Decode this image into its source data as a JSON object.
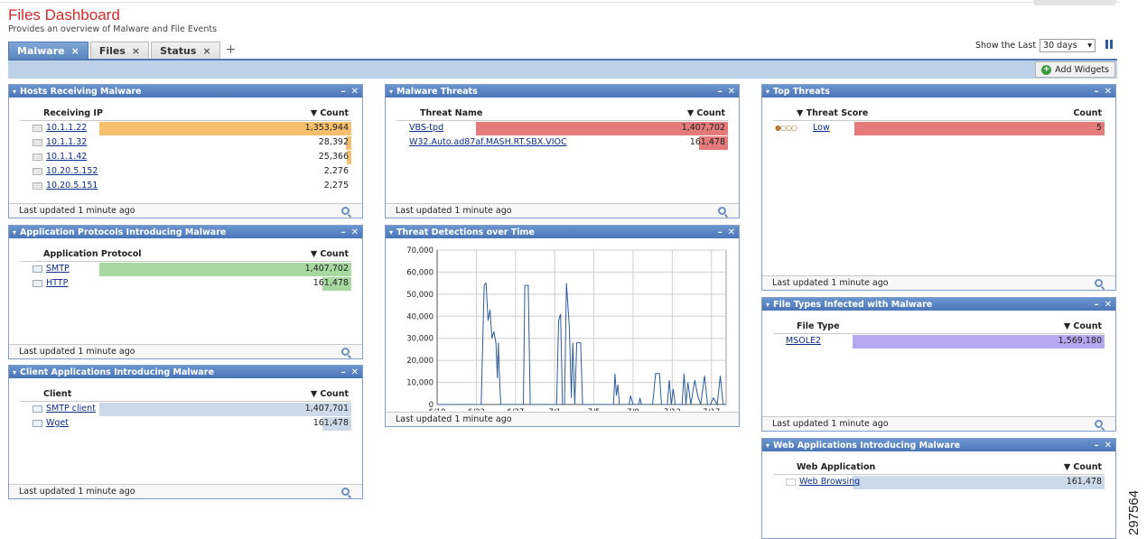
{
  "page": {
    "title": "Files Dashboard",
    "subtitle": "Provides an overview of Malware and File Events",
    "figure_number": "297564"
  },
  "tabs": [
    {
      "label": "Malware",
      "active": true
    },
    {
      "label": "Files",
      "active": false
    },
    {
      "label": "Status",
      "active": false
    }
  ],
  "tab_add": "+",
  "tab_close": "×",
  "controls": {
    "show_last_label": "Show the Last",
    "time_range": "30 days",
    "pause_icon": "pause-icon"
  },
  "toolbar": {
    "add_widgets": "Add Widgets"
  },
  "colors": {
    "orange": "#f5bf6e",
    "red": "#e47a7a",
    "green": "#a6d8a0",
    "blue_gray": "#cbd9e8",
    "purple": "#b6a8f0",
    "header": "#4a76b7",
    "line": "#2e5c9a"
  },
  "widgets": {
    "hosts": {
      "title": "Hosts Receiving Malware",
      "col1": "Receiving IP",
      "col2": "▼ Count",
      "rows": [
        {
          "label": "10.1.1.22",
          "value": "1,353,944",
          "fraction": 1.0
        },
        {
          "label": "10.1.1.32",
          "value": "28,392",
          "fraction": 0.021
        },
        {
          "label": "10.1.1.42",
          "value": "25,366",
          "fraction": 0.019
        },
        {
          "label": "10.20.5.152",
          "value": "2,276",
          "fraction": 0.0
        },
        {
          "label": "10.20.5.151",
          "value": "2,275",
          "fraction": 0.0
        }
      ],
      "footer": "Last updated 1 minute ago"
    },
    "app_protocols": {
      "title": "Application Protocols Introducing Malware",
      "col1": "Application Protocol",
      "col2": "▼ Count",
      "rows": [
        {
          "label": "SMTP",
          "value": "1,407,702",
          "fraction": 1.0
        },
        {
          "label": "HTTP",
          "value": "161,478",
          "fraction": 0.115
        }
      ],
      "footer": "Last updated 1 minute ago"
    },
    "client_apps": {
      "title": "Client Applications Introducing Malware",
      "col1": "Client",
      "col2": "▼ Count",
      "rows": [
        {
          "label": "SMTP client",
          "value": "1,407,701",
          "fraction": 1.0
        },
        {
          "label": "Wget",
          "value": "161,478",
          "fraction": 0.115
        }
      ],
      "footer": "Last updated 1 minute ago"
    },
    "malware_threats": {
      "title": "Malware Threats",
      "col1": "Threat Name",
      "col2": "▼ Count",
      "rows": [
        {
          "label": "VBS-tpd",
          "value": "1,407,702",
          "fraction": 1.0
        },
        {
          "label": "W32.Auto.ad87af.MASH.RT.SBX.VIOC",
          "value": "161,478",
          "fraction": 0.115
        }
      ],
      "footer": "Last updated 1 minute ago"
    },
    "threat_detections": {
      "title": "Threat Detections over Time",
      "footer": "Last updated 1 minute ago"
    },
    "top_threats": {
      "title": "Top Threats",
      "col1": "▼ Threat Score",
      "col2": "Count",
      "rows": [
        {
          "label": "Low",
          "value": "5",
          "fraction": 1.0,
          "score_dots": "●○○○"
        }
      ],
      "footer": "Last updated 1 minute ago"
    },
    "file_types": {
      "title": "File Types Infected with Malware",
      "col1": "File Type",
      "col2": "▼ Count",
      "rows": [
        {
          "label": "MSOLE2",
          "value": "1,569,180",
          "fraction": 1.0
        }
      ],
      "footer": "Last updated 1 minute ago"
    },
    "web_apps": {
      "title": "Web Applications Introducing Malware",
      "col1": "Web Application",
      "col2": "▼ Count",
      "rows": [
        {
          "label": "Web Browsing",
          "value": "161,478",
          "fraction": 1.0
        }
      ]
    }
  },
  "chart_data": {
    "type": "line",
    "title": "Threat Detections over Time",
    "x_ticks": [
      "6/19",
      "6/23",
      "6/27",
      "7/1",
      "7/5",
      "7/9",
      "7/13",
      "7/17"
    ],
    "y_ticks": [
      "70,000",
      "60,000",
      "50,000",
      "40,000",
      "30,000",
      "20,000",
      "10,000",
      "0"
    ],
    "ylim": [
      0,
      70000
    ],
    "xlim": [
      0,
      29.5
    ],
    "grid": true,
    "series": [
      {
        "x": [
          0,
          4.5,
          4.8,
          5.0,
          5.2,
          5.4,
          5.6,
          5.8,
          6.0,
          6.15,
          6.25,
          6.35,
          6.5,
          6.7,
          6.85,
          7.0,
          7.2,
          7.4,
          7.6,
          7.8,
          8.0,
          8.8,
          8.95,
          9.1,
          9.3,
          9.5,
          9.65,
          9.8,
          12.2,
          12.4,
          12.6,
          12.8,
          13.0,
          13.2,
          13.35,
          13.5,
          13.7,
          13.85,
          14.05,
          14.25,
          14.45,
          14.65,
          14.85,
          15.0,
          15.2,
          18.0,
          18.15,
          18.3,
          18.45,
          18.6,
          18.75,
          18.9,
          19.5,
          19.6,
          19.75,
          20.0,
          20.6,
          20.7,
          20.85,
          21.0,
          22.0,
          22.3,
          22.5,
          22.7,
          22.9,
          23.5,
          23.7,
          23.9,
          24.1,
          24.3,
          25.0,
          25.2,
          25.4,
          25.6,
          25.9,
          26.3,
          26.6,
          26.9,
          27.3,
          27.6,
          27.9,
          28.2,
          28.6,
          28.9,
          29.2,
          29.5
        ],
        "y": [
          0,
          0,
          54000,
          55000,
          38000,
          43000,
          30000,
          33000,
          28000,
          12000,
          28000,
          14000,
          0,
          0,
          0,
          0,
          0,
          0,
          0,
          0,
          0,
          0,
          54000,
          54000,
          54000,
          0,
          0,
          0,
          0,
          38000,
          41000,
          0,
          0,
          55000,
          45000,
          35000,
          3000,
          28000,
          0,
          28000,
          28000,
          28000,
          0,
          0,
          0,
          0,
          14000,
          4000,
          9000,
          0,
          0,
          0,
          0,
          0,
          4000,
          0,
          0,
          3000,
          0,
          0,
          0,
          14000,
          14000,
          14000,
          0,
          0,
          11000,
          0,
          7000,
          0,
          0,
          14000,
          0,
          10000,
          0,
          11000,
          4000,
          0,
          13000,
          0,
          0,
          3000,
          0,
          13000,
          0,
          0
        ]
      }
    ]
  },
  "icons": {
    "host": "host-icon",
    "app": "app-icon",
    "search": "magnifier-icon",
    "minimize": "minimize-icon",
    "close": "close-icon",
    "collapse": "collapse-chevron-icon"
  }
}
